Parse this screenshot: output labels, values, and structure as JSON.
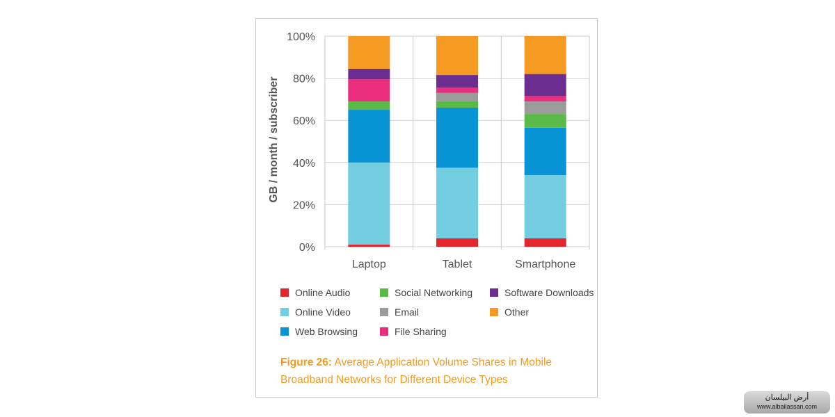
{
  "chart_data": {
    "type": "bar",
    "stacked": true,
    "categories": [
      "Laptop",
      "Tablet",
      "Smartphone"
    ],
    "ylabel": "GB / month / subscriber",
    "ylim": [
      0,
      100
    ],
    "yticks": [
      "0%",
      "20%",
      "40%",
      "60%",
      "80%",
      "100%"
    ],
    "ytick_values": [
      0,
      20,
      40,
      60,
      80,
      100
    ],
    "grid": true,
    "legend_position": "bottom",
    "series": [
      {
        "name": "Online Audio",
        "color": "#e3262e",
        "values": [
          1,
          4,
          4
        ]
      },
      {
        "name": "Online Video",
        "color": "#73cde0",
        "values": [
          39,
          33.5,
          30
        ]
      },
      {
        "name": "Web Browsing",
        "color": "#0894d4",
        "values": [
          25,
          28.5,
          22.5
        ]
      },
      {
        "name": "Social Networking",
        "color": "#5ab947",
        "values": [
          4,
          3,
          6.5
        ]
      },
      {
        "name": "Email",
        "color": "#9b9b9b",
        "values": [
          0,
          4,
          6
        ]
      },
      {
        "name": "File Sharing",
        "color": "#ea2d7c",
        "values": [
          10.5,
          2.5,
          2.5
        ]
      },
      {
        "name": "Software Downloads",
        "color": "#6b2d90",
        "values": [
          5,
          6,
          10.5
        ]
      },
      {
        "name": "Other",
        "color": "#f59a22",
        "values": [
          15.5,
          18.5,
          18
        ]
      }
    ]
  },
  "caption": {
    "label": "Figure 26:",
    "text": " Average Application Volume Shares in Mobile Broadband Networks for Different Device Types"
  },
  "watermark": {
    "line1": "أرض البيلسان",
    "line2": "www.albailassan.com"
  }
}
